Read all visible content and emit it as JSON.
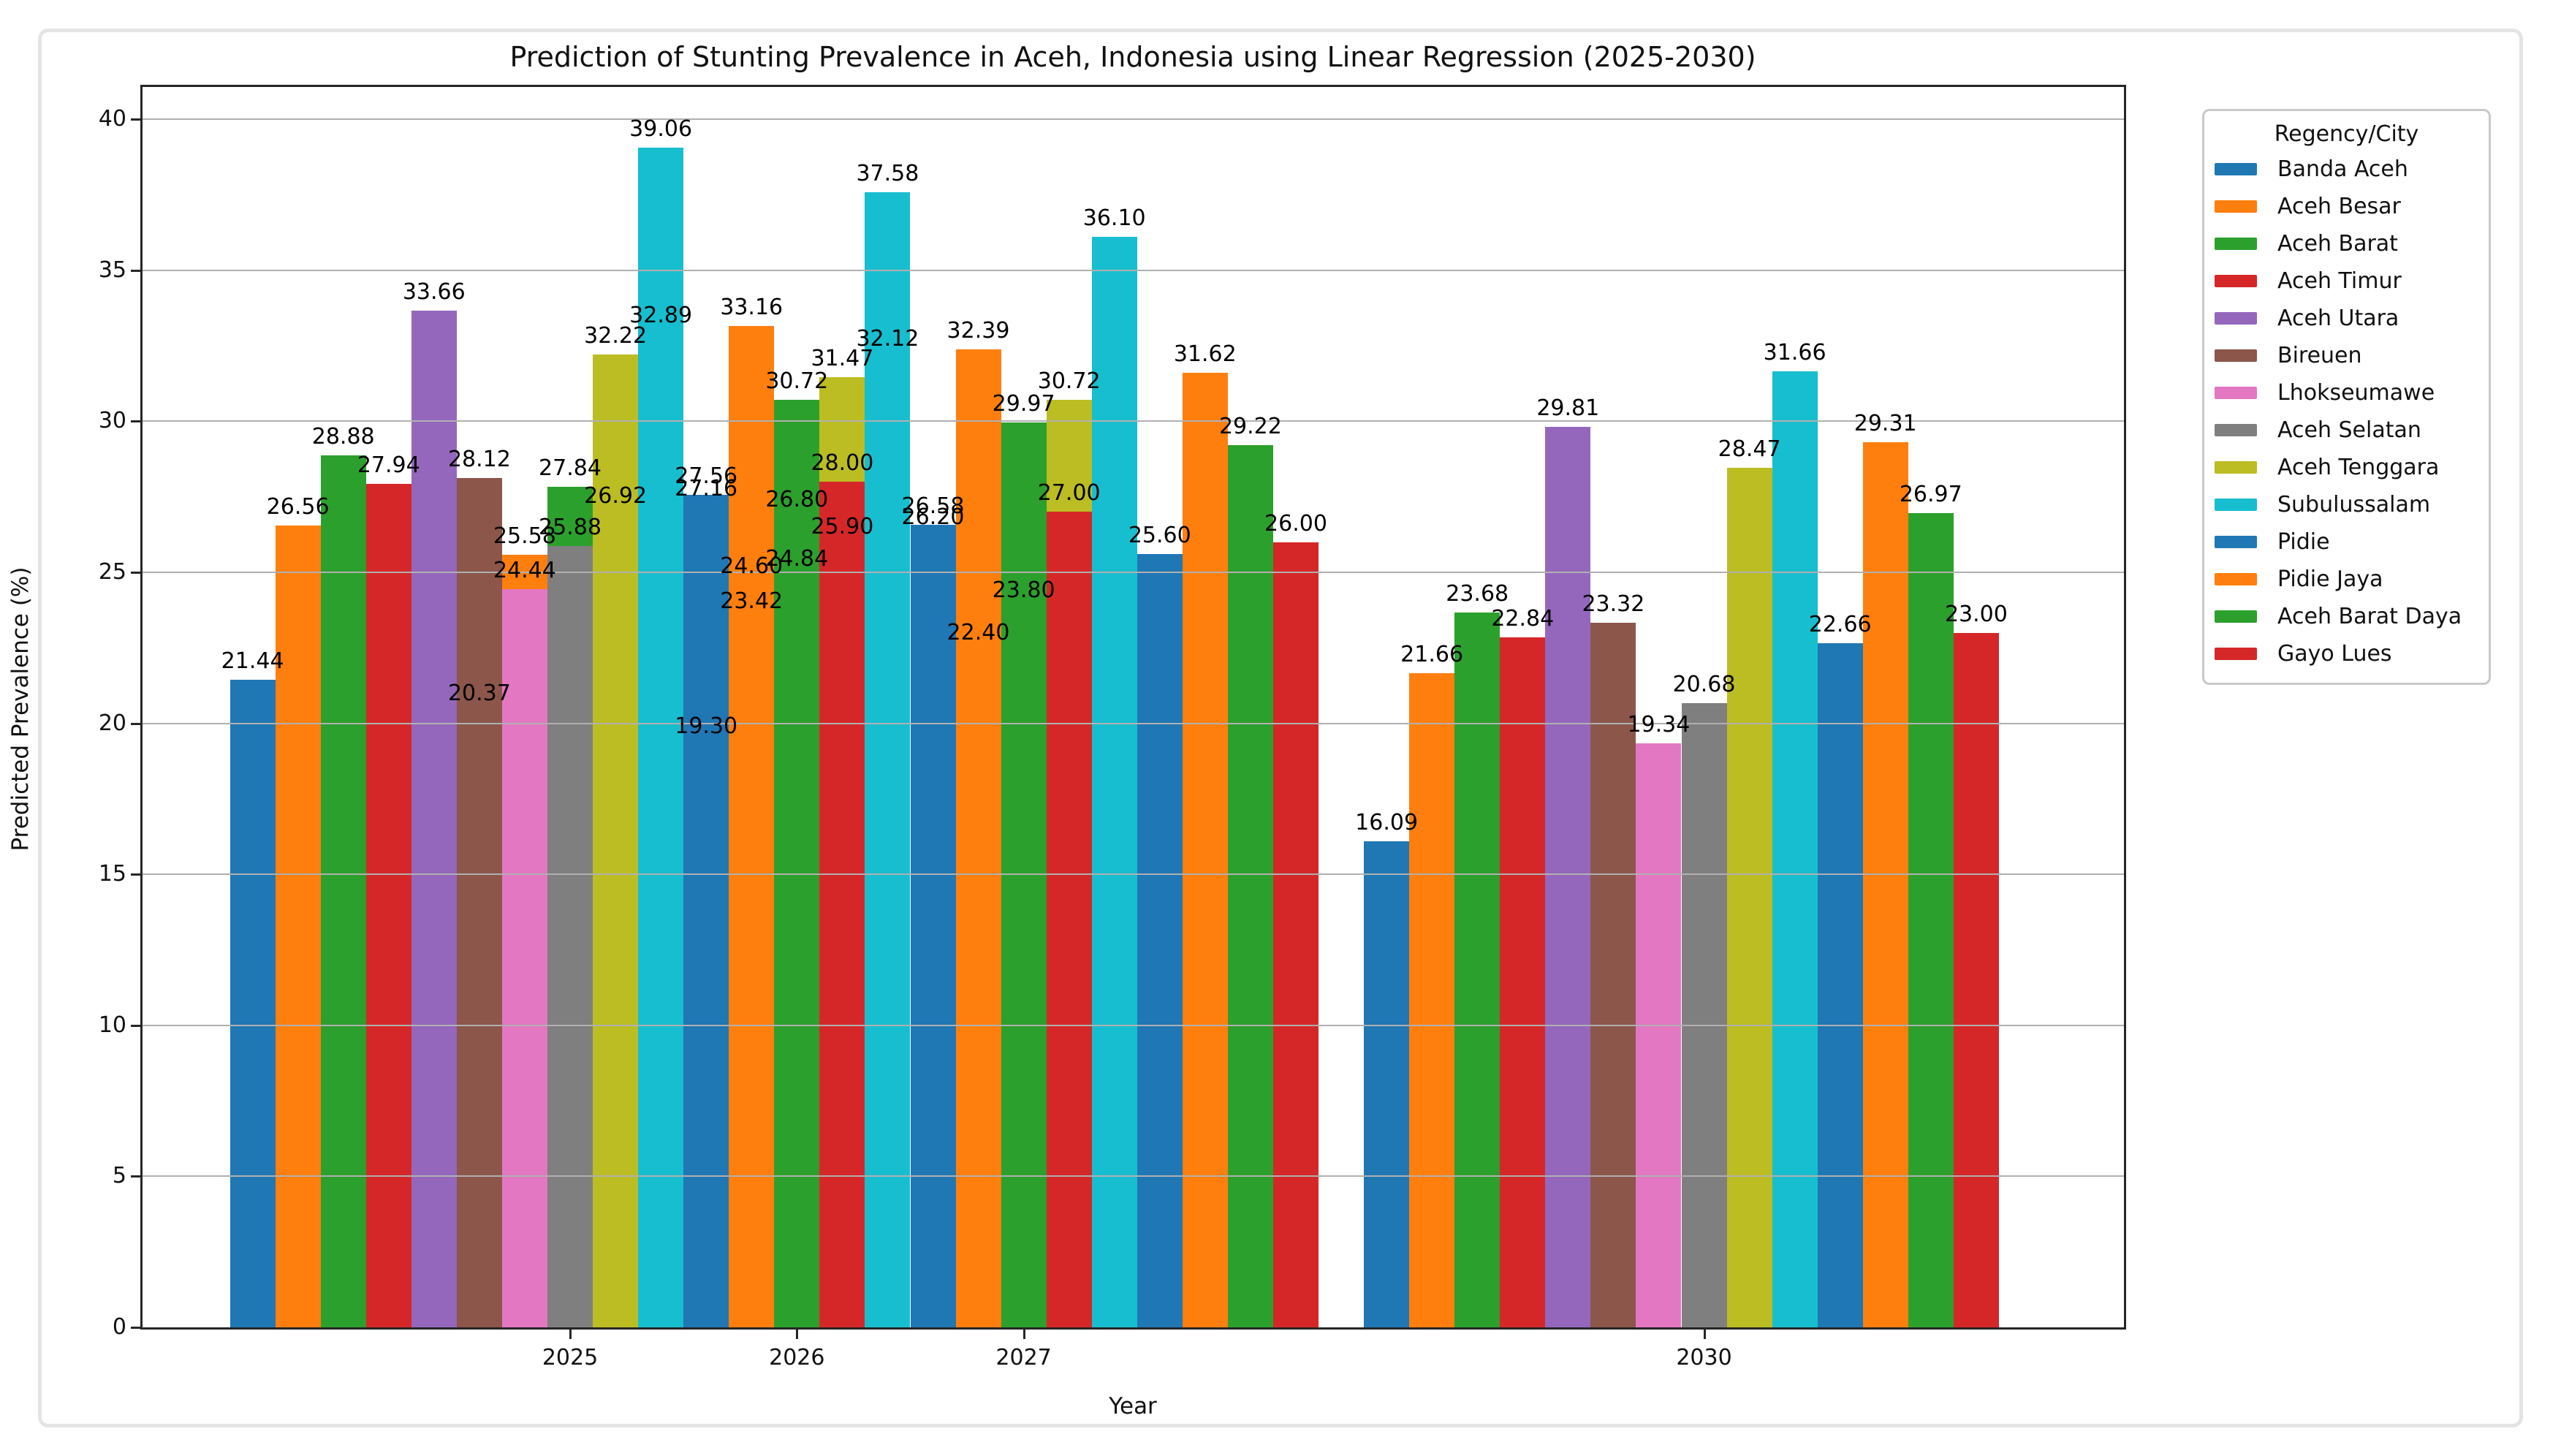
{
  "figure": {
    "title": "Prediction of Stunting Prevalence in Aceh, Indonesia using Linear Regression (2025-2030)",
    "xlabel": "Year",
    "ylabel": "Predicted Prevalence (%)"
  },
  "legend": {
    "title": "Regency/City"
  },
  "chart_data": {
    "type": "bar",
    "title": "Prediction of Stunting Prevalence in Aceh, Indonesia using Linear Regression (2025-2030)",
    "xlabel": "Year",
    "ylabel": "Predicted Prevalence (%)",
    "years": [
      2025,
      2026,
      2027,
      2030
    ],
    "yticks": [
      0,
      5,
      10,
      15,
      20,
      25,
      30,
      35,
      40
    ],
    "ylim": [
      0,
      41
    ],
    "grid": true,
    "bar_width_years": 0.2,
    "legend_position": "outside upper right",
    "legend_title": "Regency/City",
    "value_label_decimals": 2,
    "series": [
      {
        "name": "Banda Aceh",
        "color": "#1f77b4",
        "values": [
          21.44,
          20.37,
          19.3,
          16.09
        ]
      },
      {
        "name": "Aceh Besar",
        "color": "#ff7f0e",
        "values": [
          26.56,
          25.58,
          24.6,
          21.66
        ]
      },
      {
        "name": "Aceh Barat",
        "color": "#2ca02c",
        "values": [
          28.88,
          27.84,
          26.8,
          23.68
        ]
      },
      {
        "name": "Aceh Timur",
        "color": "#d62728",
        "values": [
          27.94,
          26.92,
          25.9,
          22.84
        ]
      },
      {
        "name": "Aceh Utara",
        "color": "#9467bd",
        "values": [
          33.66,
          32.89,
          32.12,
          29.81
        ]
      },
      {
        "name": "Bireuen",
        "color": "#8c564b",
        "values": [
          28.12,
          27.16,
          26.2,
          23.32
        ]
      },
      {
        "name": "Lhokseumawe",
        "color": "#e377c2",
        "values": [
          24.44,
          23.42,
          22.4,
          19.34
        ]
      },
      {
        "name": "Aceh Selatan",
        "color": "#7f7f7f",
        "values": [
          25.88,
          24.84,
          23.8,
          20.68
        ]
      },
      {
        "name": "Aceh Tenggara",
        "color": "#bcbd22",
        "values": [
          32.22,
          31.47,
          30.72,
          28.47
        ]
      },
      {
        "name": "Subulussalam",
        "color": "#17becf",
        "values": [
          39.06,
          37.58,
          36.1,
          31.66
        ]
      },
      {
        "name": "Pidie",
        "color": "#1f77b4",
        "values": [
          27.56,
          26.58,
          25.6,
          22.66
        ]
      },
      {
        "name": "Pidie Jaya",
        "color": "#ff7f0e",
        "values": [
          33.16,
          32.39,
          31.62,
          29.31
        ]
      },
      {
        "name": "Aceh Barat Daya",
        "color": "#2ca02c",
        "values": [
          30.72,
          29.97,
          29.22,
          26.97
        ]
      },
      {
        "name": "Gayo Lues",
        "color": "#d62728",
        "values": [
          28.0,
          27.0,
          26.0,
          23.0
        ]
      }
    ]
  }
}
